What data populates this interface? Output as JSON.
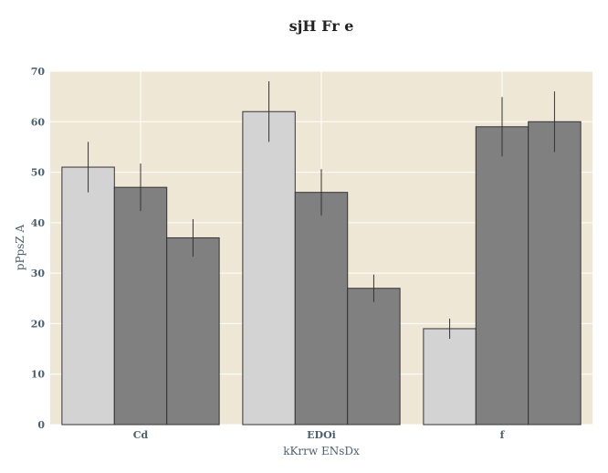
{
  "chart_data": {
    "type": "bar",
    "title": "sjH Fr e",
    "xlabel": "kKrrw ENsDx",
    "ylabel": "pPpsZ A",
    "categories": [
      "Cd",
      "EDOi",
      "f"
    ],
    "ylim": [
      0,
      70
    ],
    "yticks": [
      0,
      10,
      20,
      30,
      40,
      50,
      60,
      70
    ],
    "grid": true,
    "legend": "none",
    "series": [
      {
        "values": [
          51,
          62,
          19
        ],
        "errors": [
          5,
          6,
          2
        ],
        "color": "#d3d3d3"
      },
      {
        "values": [
          47,
          46,
          59
        ],
        "errors": [
          4.7,
          4.6,
          5.9
        ],
        "color": "#808080"
      },
      {
        "values": [
          37,
          27,
          60
        ],
        "errors": [
          3.7,
          2.7,
          6
        ],
        "color": "#808080"
      }
    ],
    "colors": {
      "plot_bg": "#efe7d5",
      "grid": "#ffffff",
      "bar_edge": "#333333",
      "tick_text": "#4a6070"
    }
  }
}
